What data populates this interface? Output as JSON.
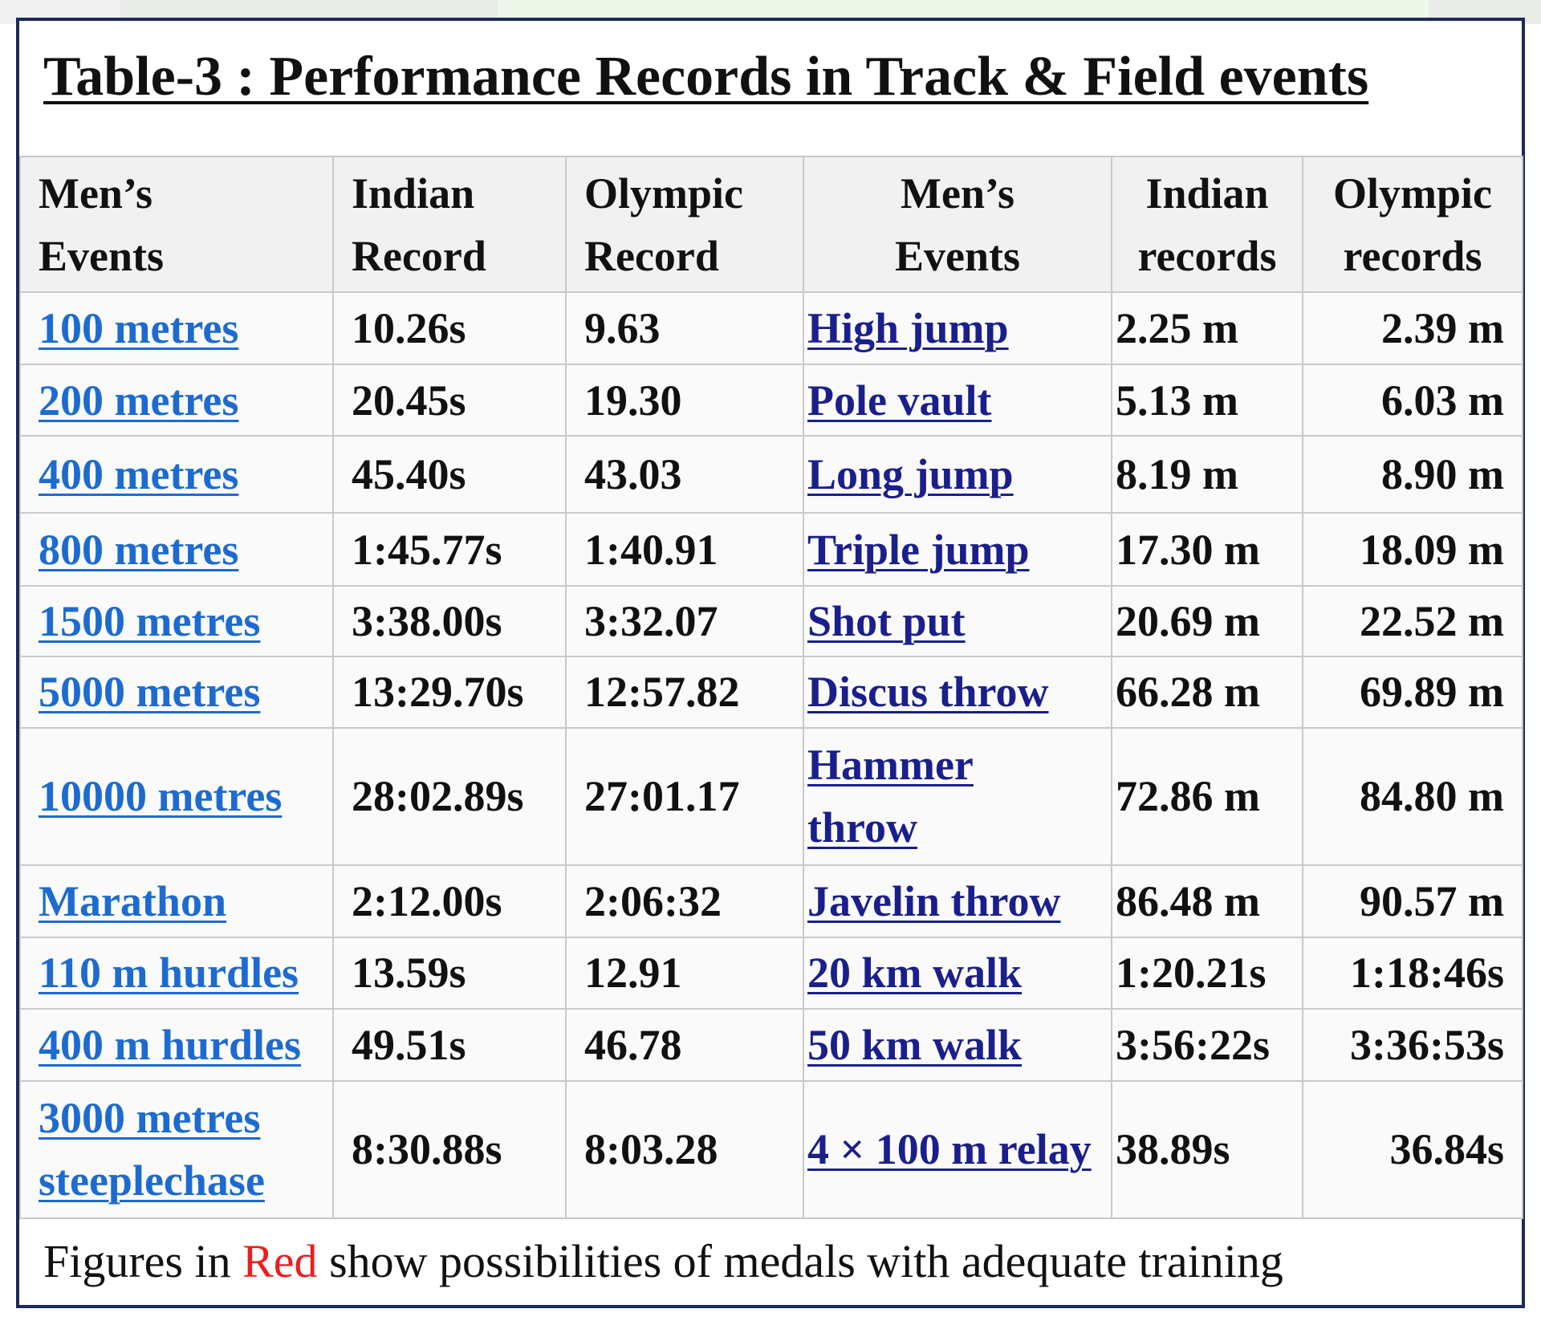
{
  "title": "Table-3 : Performance Records in Track & Field events",
  "headers": {
    "track_event": [
      "Men’s",
      "Events"
    ],
    "track_indian": [
      "Indian",
      "Record"
    ],
    "track_olympic": [
      "Olympic",
      "Record"
    ],
    "field_event": [
      "Men’s",
      "Events"
    ],
    "field_indian": [
      "Indian",
      "records"
    ],
    "field_olympic": [
      "Olympic",
      "records"
    ]
  },
  "rows": [
    {
      "track_event": "100 metres",
      "track_indian": "10.26s",
      "track_olympic": "9.63",
      "field_event": "High jump",
      "field_indian": "2.25 m",
      "field_olympic": "2.39 m"
    },
    {
      "track_event": "200 metres",
      "track_indian": "20.45s",
      "track_olympic": "19.30",
      "field_event": "Pole vault",
      "field_indian": "5.13 m",
      "field_olympic": "6.03 m"
    },
    {
      "track_event": "400 metres",
      "track_indian": "45.40s",
      "track_olympic": "43.03",
      "field_event": "Long jump",
      "field_indian": "8.19 m",
      "field_olympic": "8.90 m"
    },
    {
      "track_event": "800 metres",
      "track_indian": "1:45.77s",
      "track_olympic": "1:40.91",
      "field_event": "Triple jump",
      "field_indian": "17.30 m",
      "field_olympic": "18.09 m"
    },
    {
      "track_event": "1500 metres",
      "track_indian": "3:38.00s",
      "track_olympic": "3:32.07",
      "field_event": "Shot put",
      "field_indian": "20.69 m",
      "field_olympic": "22.52 m"
    },
    {
      "track_event": "5000 metres",
      "track_indian": "13:29.70s",
      "track_olympic": "12:57.82",
      "field_event": "Discus throw",
      "field_indian": "66.28 m",
      "field_olympic": "69.89 m"
    },
    {
      "track_event": "10000 metres",
      "track_indian": "28:02.89s",
      "track_olympic": "27:01.17",
      "field_event": "Hammer throw",
      "field_indian": "72.86 m",
      "field_olympic": "84.80 m"
    },
    {
      "track_event": "Marathon",
      "track_indian": "2:12.00s",
      "track_olympic": "2:06:32",
      "field_event": "Javelin throw",
      "field_indian": "86.48 m",
      "field_olympic": "90.57 m"
    },
    {
      "track_event": "110 m hurdles",
      "track_indian": "13.59s",
      "track_olympic": "12.91",
      "field_event": "20 km walk",
      "field_indian": "1:20.21s",
      "field_olympic": "1:18:46s"
    },
    {
      "track_event": "400 m hurdles",
      "track_indian": "49.51s",
      "track_olympic": "46.78",
      "field_event": "50 km walk",
      "field_indian": "3:56:22s",
      "field_olympic": "3:36:53s"
    },
    {
      "track_event": "3000 metres steeplechase",
      "track_indian": "8:30.88s",
      "track_olympic": "8:03.28",
      "field_event": "4 × 100 m relay",
      "field_indian": "38.89s",
      "field_olympic": "36.84s"
    }
  ],
  "footer": {
    "before": "Figures in ",
    "highlight": "Red",
    "after": " show possibilities of medals with adequate training"
  },
  "colors": {
    "track_link": "#1d6bd0",
    "field_link": "#1a1f8c",
    "red_bright": "#ee1c1c",
    "red_dark": "#c00000",
    "frame": "#1c2a5c"
  }
}
